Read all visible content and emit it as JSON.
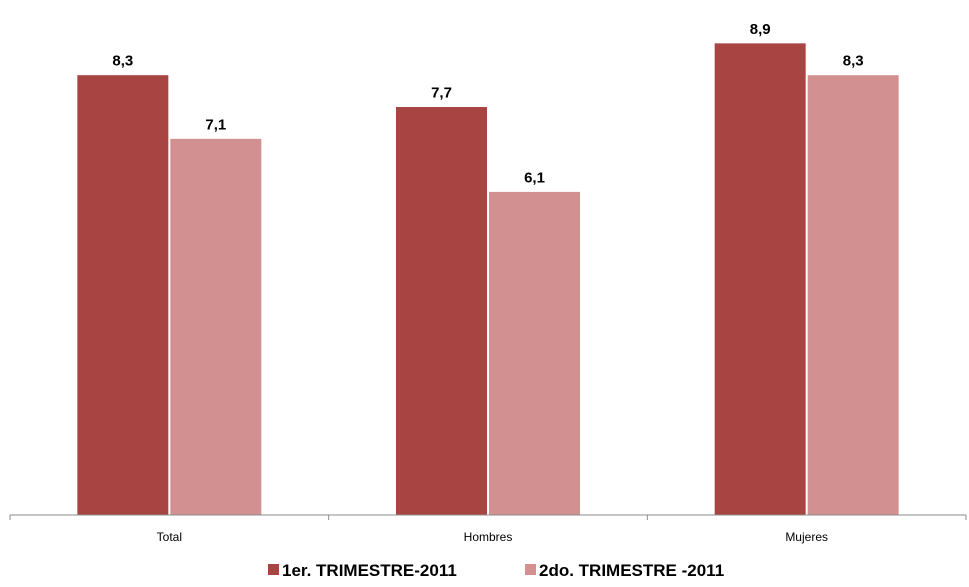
{
  "chart_data": {
    "type": "bar",
    "title": "",
    "xlabel": "",
    "ylabel": "",
    "categories": [
      "Total",
      "Hombres",
      "Mujeres"
    ],
    "series": [
      {
        "name": "1er. TRIMESTRE-2011",
        "values": [
          8.3,
          7.7,
          8.9
        ],
        "labels": [
          "8,3",
          "7,7",
          "8,9"
        ],
        "color": "#A84542"
      },
      {
        "name": "2do. TRIMESTRE -2011",
        "values": [
          7.1,
          6.1,
          8.3
        ],
        "labels": [
          "7,1",
          "6,1",
          "8,3"
        ],
        "color": "#D29190"
      }
    ],
    "ylim": [
      0,
      9.5
    ],
    "grid": false,
    "legend_position": "bottom",
    "data_labels": true
  }
}
